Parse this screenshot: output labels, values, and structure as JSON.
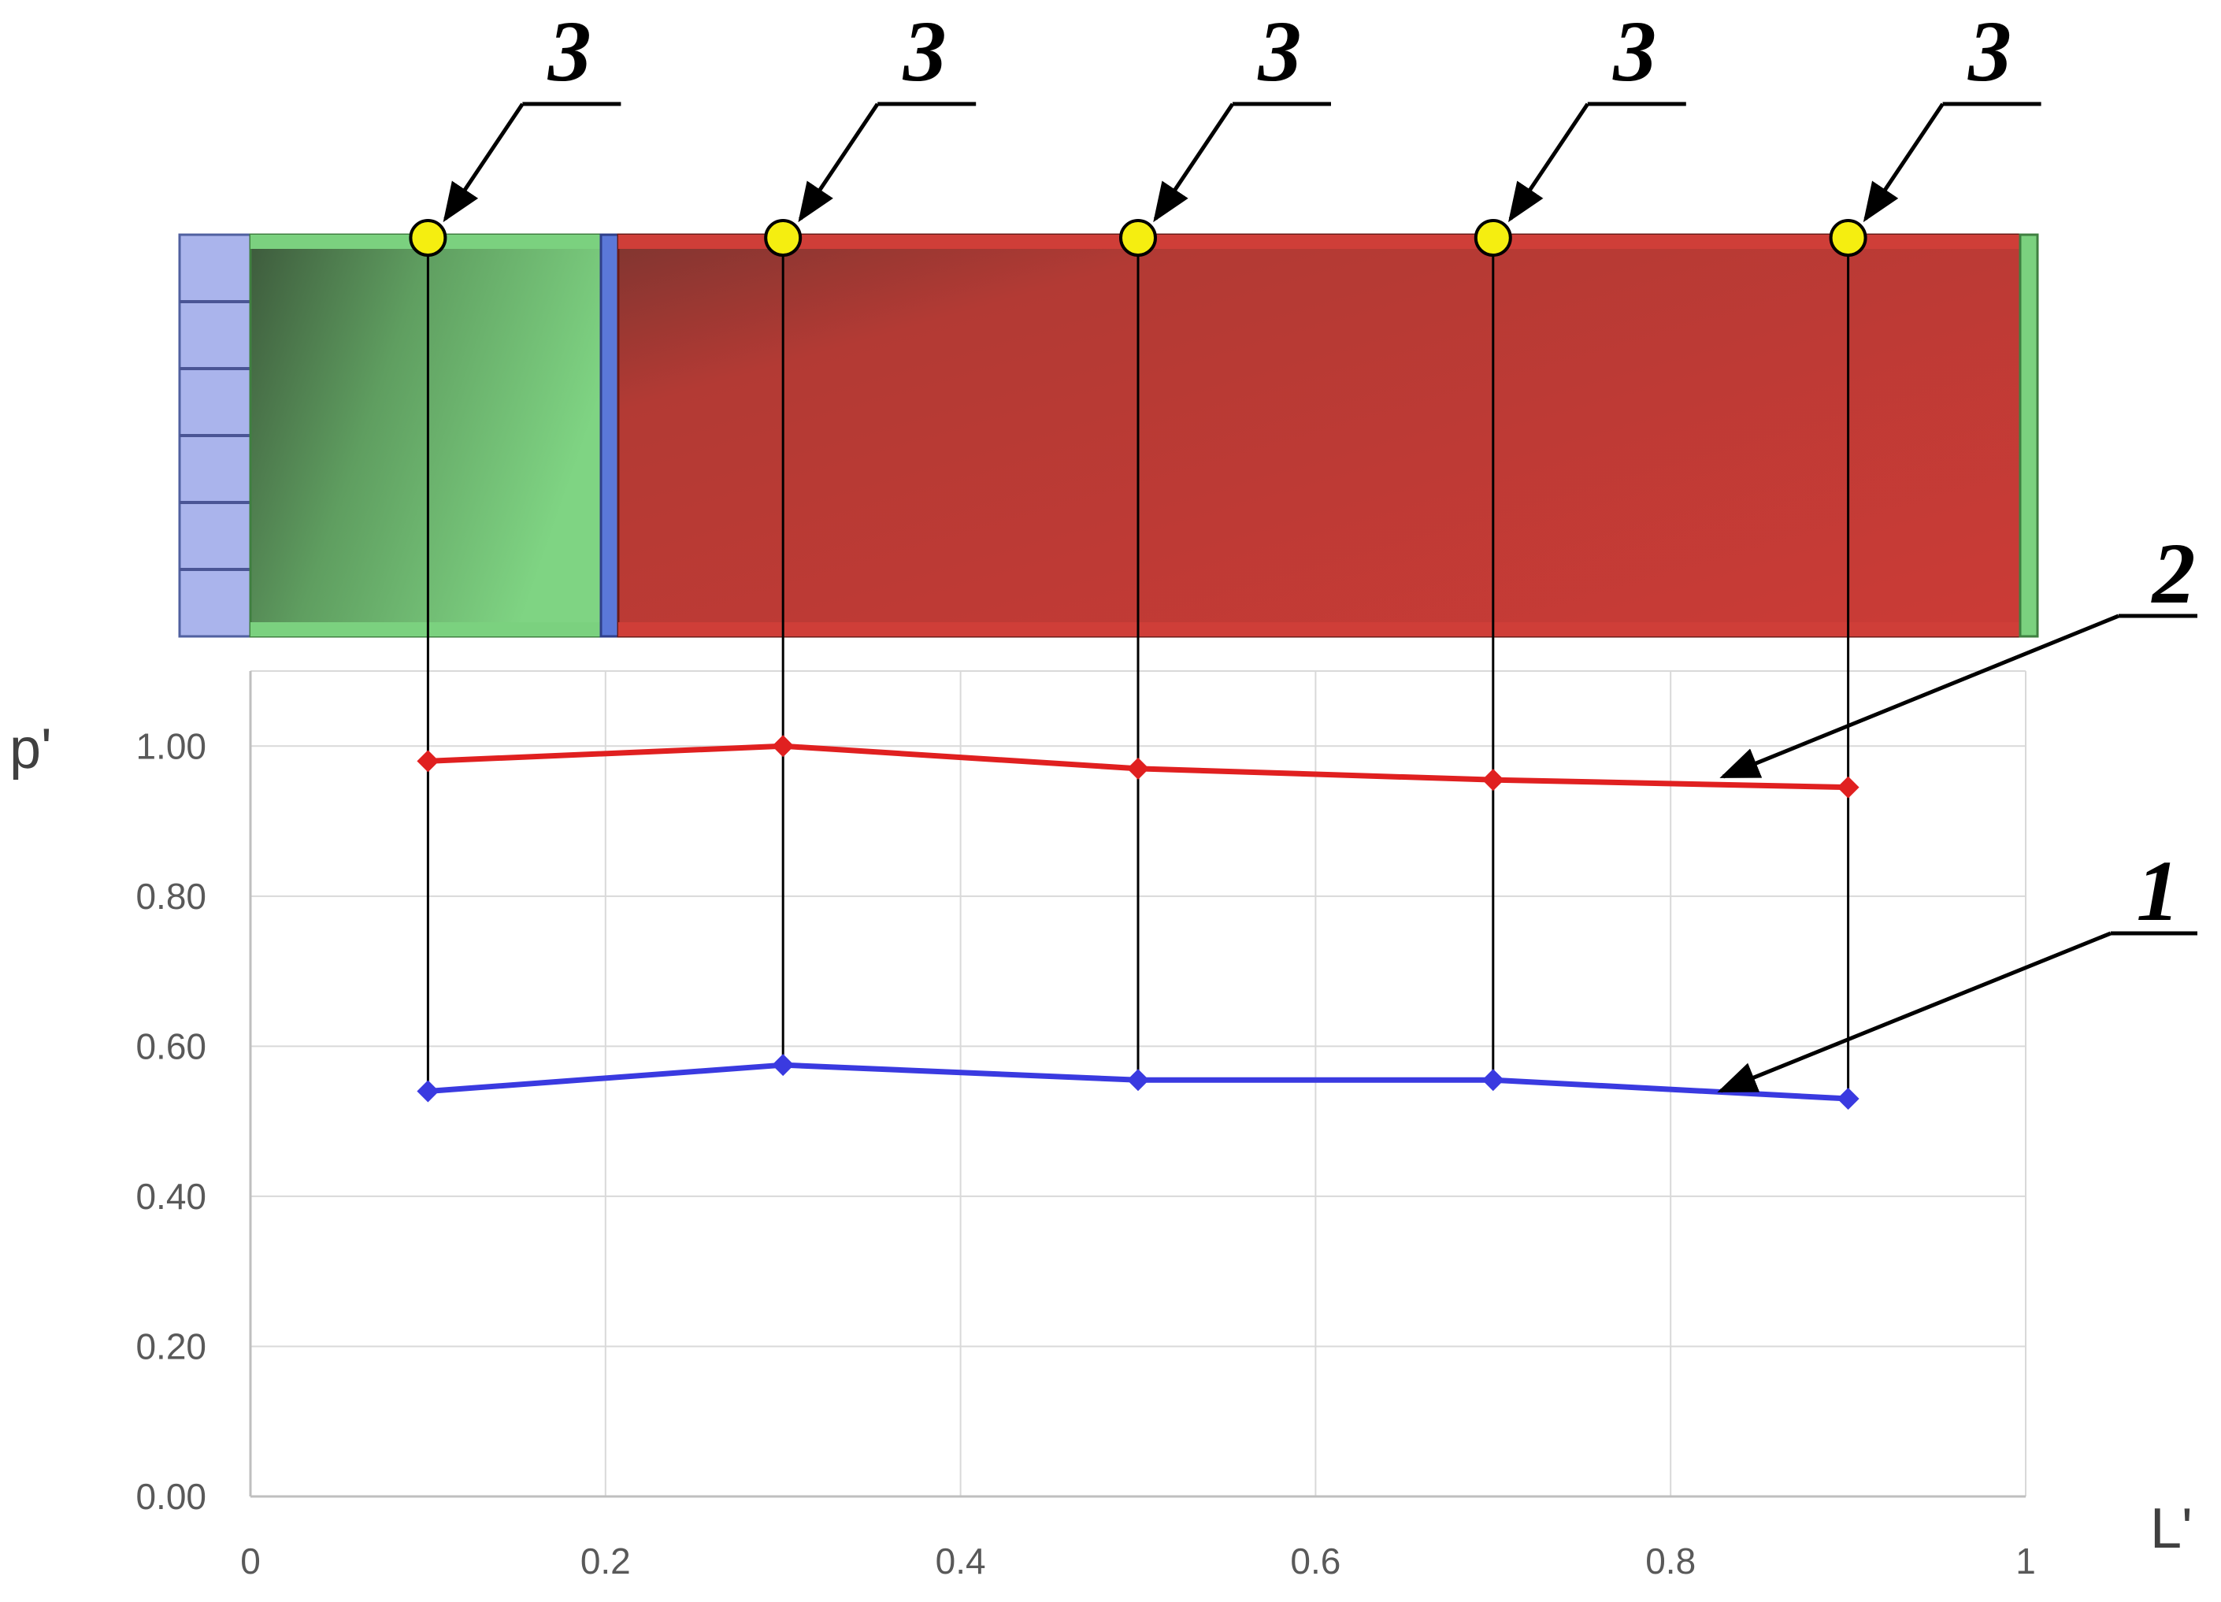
{
  "chart_data": {
    "type": "line",
    "xlabel": "L'",
    "ylabel": "p'",
    "xlim": [
      0,
      1
    ],
    "ylim": [
      0,
      1.1
    ],
    "x_ticks": [
      "0",
      "0.2",
      "0.4",
      "0.6",
      "0.8",
      "1"
    ],
    "y_ticks": [
      "0.00",
      "0.20",
      "0.40",
      "0.60",
      "0.80",
      "1.00"
    ],
    "grid": true,
    "x": [
      0.1,
      0.3,
      0.5,
      0.7,
      0.9
    ],
    "series": [
      {
        "color": "#e02020",
        "values": [
          0.98,
          1.0,
          0.97,
          0.955,
          0.945
        ]
      },
      {
        "color": "#3a3ae0",
        "values": [
          0.54,
          0.575,
          0.555,
          0.555,
          0.53
        ]
      }
    ],
    "callouts": {
      "series_labels": [
        "2",
        "1"
      ],
      "probe_label": "3"
    }
  },
  "illustration": {
    "colors": {
      "inlet": "#aab4ec",
      "green_section": "#7bd17f",
      "red_section": "#c93a35",
      "probe": "#f5ee10"
    }
  }
}
